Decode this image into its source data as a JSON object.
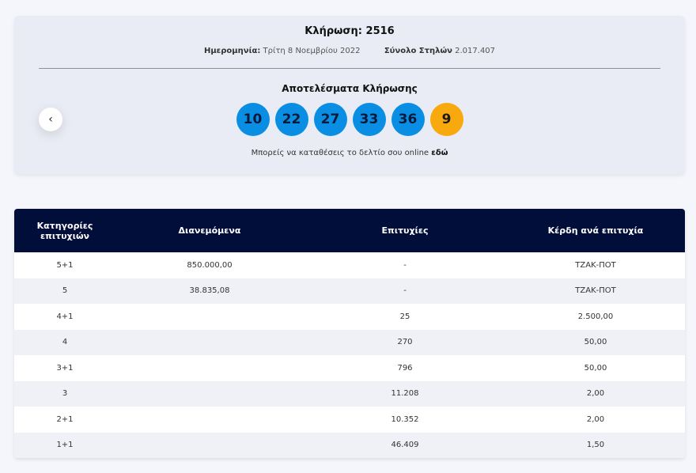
{
  "draw": {
    "title": "Κλήρωση: 2516",
    "date_label": "Ημερομηνία:",
    "date_value": "Τρίτη 8 Νοεμβρίου 2022",
    "columns_label": "Σύνολο Στηλών",
    "columns_value": "2.017.407",
    "results_title": "Αποτελέσματα Κλήρωσης",
    "numbers": [
      "10",
      "22",
      "27",
      "33",
      "36"
    ],
    "bonus": "9",
    "online_text": "Μπορείς να καταθέσεις το δελτίο σου online",
    "online_link": "εδώ",
    "prev_icon": "‹"
  },
  "colors": {
    "ball": "#0a8ee3",
    "bonus_ball": "#f8a90e",
    "header": "#010e3a"
  },
  "table": {
    "headers": {
      "category": "Κατηγορίες επιτυχιών",
      "distributed": "Διανεμόμενα",
      "winners": "Επιτυχίες",
      "prize": "Κέρδη ανά επιτυχία"
    },
    "rows": [
      {
        "category": "5+1",
        "distributed": "850.000,00",
        "winners": "-",
        "prize": "ΤΖΑΚ-ΠΟΤ"
      },
      {
        "category": "5",
        "distributed": "38.835,08",
        "winners": "-",
        "prize": "ΤΖΑΚ-ΠΟΤ"
      },
      {
        "category": "4+1",
        "distributed": "",
        "winners": "25",
        "prize": "2.500,00"
      },
      {
        "category": "4",
        "distributed": "",
        "winners": "270",
        "prize": "50,00"
      },
      {
        "category": "3+1",
        "distributed": "",
        "winners": "796",
        "prize": "50,00"
      },
      {
        "category": "3",
        "distributed": "",
        "winners": "11.208",
        "prize": "2,00"
      },
      {
        "category": "2+1",
        "distributed": "",
        "winners": "10.352",
        "prize": "2,00"
      },
      {
        "category": "1+1",
        "distributed": "",
        "winners": "46.409",
        "prize": "1,50"
      }
    ]
  }
}
